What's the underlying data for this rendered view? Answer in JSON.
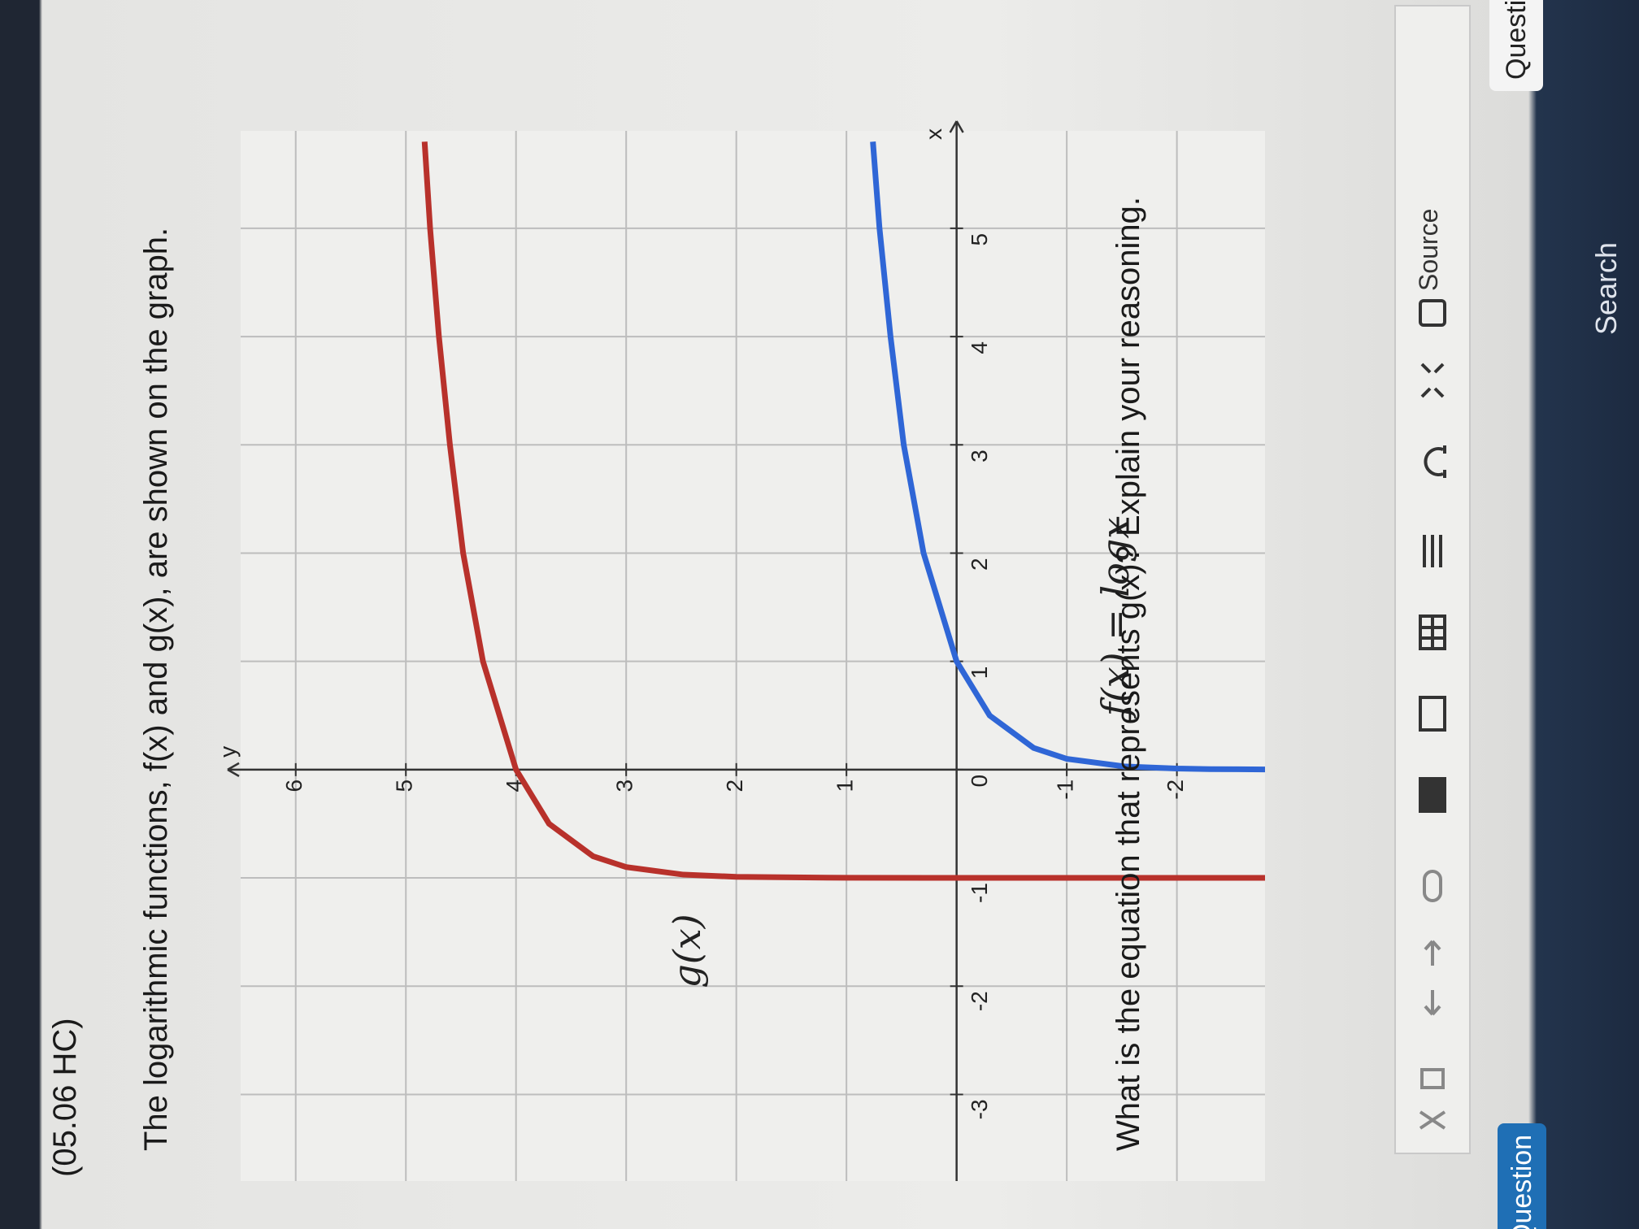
{
  "header": {
    "title": "(05.06 HC)"
  },
  "prompt": "The logarithmic functions, f(x) and g(x), are shown on the graph.",
  "graph": {
    "x_label": "x",
    "y_label": "y",
    "xlim": [
      -3.8,
      5.9
    ],
    "ylim": [
      -2.8,
      6.5
    ],
    "xticks": [
      -3,
      -2,
      -1,
      0,
      1,
      2,
      3,
      4,
      5
    ],
    "yticks": [
      -2,
      -1,
      1,
      2,
      3,
      4,
      5,
      6
    ],
    "grid": true,
    "curves": [
      {
        "label": "f(x) = logx",
        "color": "#2f66d6",
        "x": [
          0.001,
          0.005,
          0.01,
          0.03,
          0.1,
          0.2,
          0.5,
          1,
          2,
          3,
          4,
          5,
          5.8
        ],
        "y": [
          -3,
          -2.3,
          -2,
          -1.52,
          -1,
          -0.7,
          -0.3,
          0,
          0.3,
          0.48,
          0.6,
          0.7,
          0.76
        ]
      },
      {
        "label": "g(x)",
        "color": "#b8312b",
        "x": [
          -0.9999999,
          -0.999,
          -0.99,
          -0.97,
          -0.9,
          -0.8,
          -0.5,
          0,
          1,
          2,
          3,
          4,
          5,
          5.8
        ],
        "y": [
          -3,
          1,
          2,
          2.48,
          3,
          3.3,
          3.7,
          4,
          4.3,
          4.48,
          4.6,
          4.7,
          4.78,
          4.83
        ]
      }
    ]
  },
  "question": "What is the equation that represents g(x)? Explain your reasoning.",
  "toolbar": {
    "source": "Source"
  },
  "tab": "Question",
  "button": "Question",
  "taskbar": {
    "search": "Search"
  }
}
